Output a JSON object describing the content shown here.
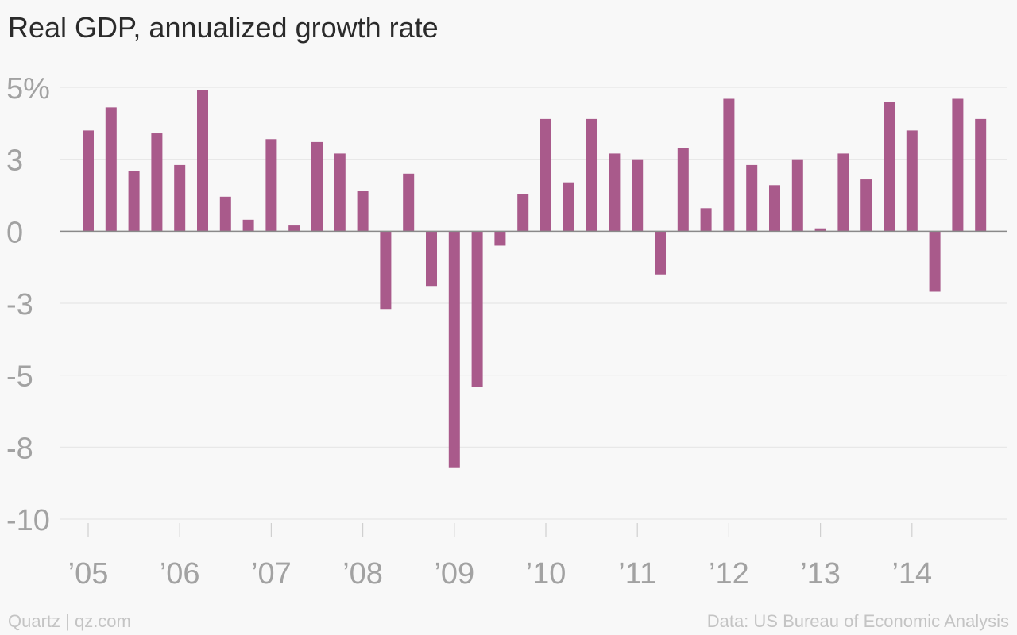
{
  "header": {
    "title": "Real GDP, annualized growth rate"
  },
  "footer": {
    "source_left": "Quartz | qz.com",
    "source_right": "Data: US Bureau of Economic Analysis"
  },
  "colors": {
    "bar": "#a95a8b",
    "grid": "#e6e6e6",
    "zero_line": "#8a8a8a",
    "tick_text": "#a2a2a2",
    "x_tick": "#d0d0d0"
  },
  "chart_data": {
    "type": "bar",
    "title": "Real GDP, annualized growth rate",
    "xlabel": "",
    "ylabel": "",
    "ylim": [
      -10,
      5
    ],
    "grid": true,
    "y_ticks": [
      5,
      2.5,
      0,
      -2.5,
      -5,
      -7.5,
      -10
    ],
    "y_tick_labels": [
      "5%",
      "3",
      "0",
      "-3",
      "-5",
      "-8",
      "-10"
    ],
    "x_tick_labels": [
      "’05",
      "’06",
      "’07",
      "’08",
      "’09",
      "’10",
      "’11",
      "’12",
      "’13",
      "’14"
    ],
    "categories": [
      "2005 Q1",
      "2005 Q2",
      "2005 Q3",
      "2005 Q4",
      "2006 Q1",
      "2006 Q2",
      "2006 Q3",
      "2006 Q4",
      "2007 Q1",
      "2007 Q2",
      "2007 Q3",
      "2007 Q4",
      "2008 Q1",
      "2008 Q2",
      "2008 Q3",
      "2008 Q4",
      "2009 Q1",
      "2009 Q2",
      "2009 Q3",
      "2009 Q4",
      "2010 Q1",
      "2010 Q2",
      "2010 Q3",
      "2010 Q4",
      "2011 Q1",
      "2011 Q2",
      "2011 Q3",
      "2011 Q4",
      "2012 Q1",
      "2012 Q2",
      "2012 Q3",
      "2012 Q4",
      "2013 Q1",
      "2013 Q2",
      "2013 Q3",
      "2013 Q4",
      "2014 Q1",
      "2014 Q2",
      "2014 Q3",
      "2014 Q4"
    ],
    "values": [
      3.5,
      4.3,
      2.1,
      3.4,
      2.3,
      4.9,
      1.2,
      0.4,
      3.2,
      0.2,
      3.1,
      2.7,
      1.4,
      -2.7,
      2.0,
      -1.9,
      -8.2,
      -5.4,
      -0.5,
      1.3,
      3.9,
      1.7,
      3.9,
      2.7,
      2.5,
      -1.5,
      2.9,
      0.8,
      4.6,
      2.3,
      1.6,
      2.5,
      0.1,
      2.7,
      1.8,
      4.5,
      3.5,
      -2.1,
      4.6,
      3.9
    ]
  }
}
